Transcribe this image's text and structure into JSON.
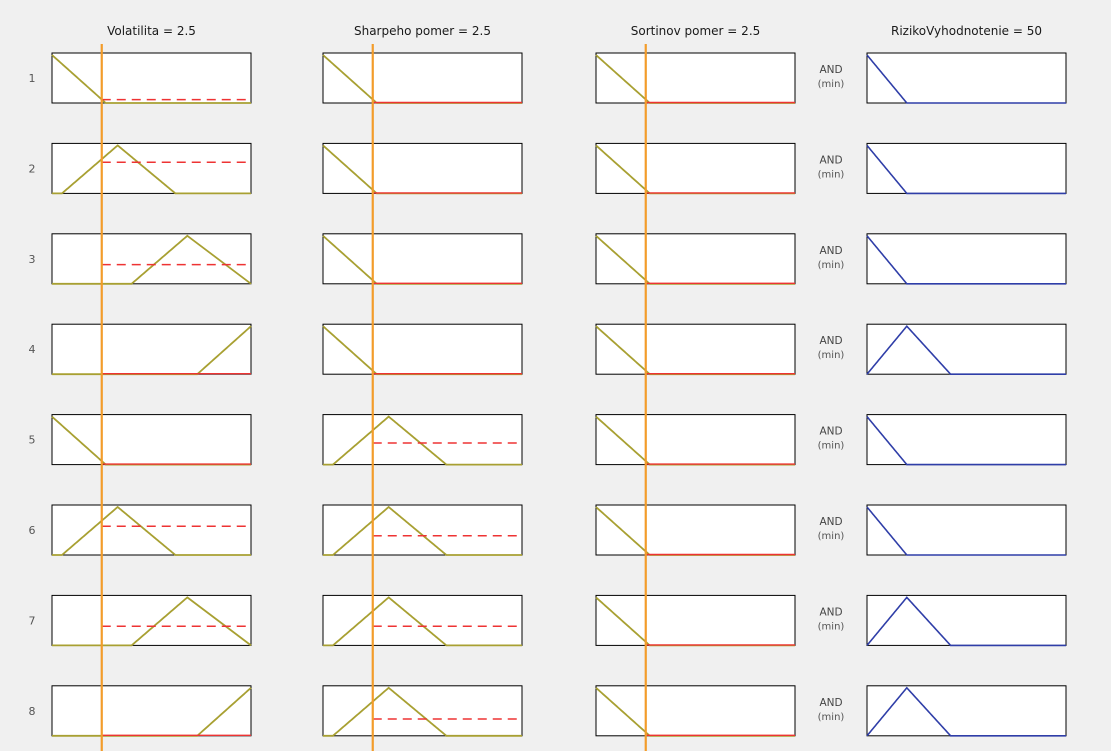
{
  "chart_data": {
    "type": "fuzzy-rule-viewer",
    "inputs": [
      {
        "name": "Volatilita",
        "value": "2.5",
        "header": "Volatilita = 2.5",
        "range": [
          0,
          10
        ],
        "input_value": 2.5
      },
      {
        "name": "Sharpeho pomer",
        "value": "2.5",
        "header": "Sharpeho pomer = 2.5",
        "range": [
          0,
          10
        ],
        "input_value": 2.5
      },
      {
        "name": "Sortinov pomer",
        "value": "2.5",
        "header": "Sortinov pomer = 2.5",
        "range": [
          0,
          10
        ],
        "input_value": 2.5
      }
    ],
    "output": {
      "name": "RizikoVyhodnotenie",
      "value": "50",
      "header": "RizikoVyhodnotenie = 50",
      "range": [
        0,
        100
      ]
    },
    "membership_functions": {
      "input": {
        "low": {
          "type": "trimf",
          "params": [
            -3,
            0,
            2.7
          ]
        },
        "medium": {
          "type": "trimf",
          "params": [
            0.5,
            3.3,
            6.2
          ]
        },
        "high": {
          "type": "trimf",
          "params": [
            4,
            6.8,
            10
          ]
        },
        "very_high": {
          "type": "trimf",
          "params": [
            7.3,
            10,
            13
          ]
        }
      },
      "output": {
        "low": {
          "type": "trimf",
          "params": [
            -20,
            0,
            20
          ]
        },
        "medium": {
          "type": "trimf",
          "params": [
            0,
            20,
            42
          ]
        }
      }
    },
    "rules": [
      {
        "index": "1",
        "operator": "AND",
        "operator_sub": "(min)",
        "terms": [
          "low",
          "low",
          "low"
        ],
        "output": "low",
        "firing": [
          0.07,
          0,
          0
        ]
      },
      {
        "index": "2",
        "operator": "AND",
        "operator_sub": "(min)",
        "terms": [
          "medium",
          "low",
          "low"
        ],
        "output": "low",
        "firing": [
          0.65,
          0,
          0
        ]
      },
      {
        "index": "3",
        "operator": "AND",
        "operator_sub": "(min)",
        "terms": [
          "high",
          "low",
          "low"
        ],
        "output": "low",
        "firing": [
          0.4,
          0,
          0
        ]
      },
      {
        "index": "4",
        "operator": "AND",
        "operator_sub": "(min)",
        "terms": [
          "very_high",
          "low",
          "low"
        ],
        "output": "medium",
        "firing": [
          0,
          0,
          0
        ]
      },
      {
        "index": "5",
        "operator": "AND",
        "operator_sub": "(min)",
        "terms": [
          "low",
          "medium",
          "low"
        ],
        "output": "low",
        "firing": [
          0,
          0.45,
          0
        ]
      },
      {
        "index": "6",
        "operator": "AND",
        "operator_sub": "(min)",
        "terms": [
          "medium",
          "medium",
          "low"
        ],
        "output": "low",
        "firing": [
          0.6,
          0.4,
          0
        ]
      },
      {
        "index": "7",
        "operator": "AND",
        "operator_sub": "(min)",
        "terms": [
          "high",
          "medium",
          "low"
        ],
        "output": "medium",
        "firing": [
          0.4,
          0.4,
          0
        ]
      },
      {
        "index": "8",
        "operator": "AND",
        "operator_sub": "(min)",
        "terms": [
          "very_high",
          "medium",
          "low"
        ],
        "output": "medium",
        "firing": [
          0,
          0.35,
          0
        ]
      }
    ],
    "colors": {
      "input_mf": "#a8a032",
      "output_mf": "#2f3ea8",
      "firing": "#ee3333",
      "cursor": "#f39c2a",
      "frame": "#000000",
      "panel_bg": "#ffffff",
      "page_bg": "#f0f0f0"
    }
  }
}
